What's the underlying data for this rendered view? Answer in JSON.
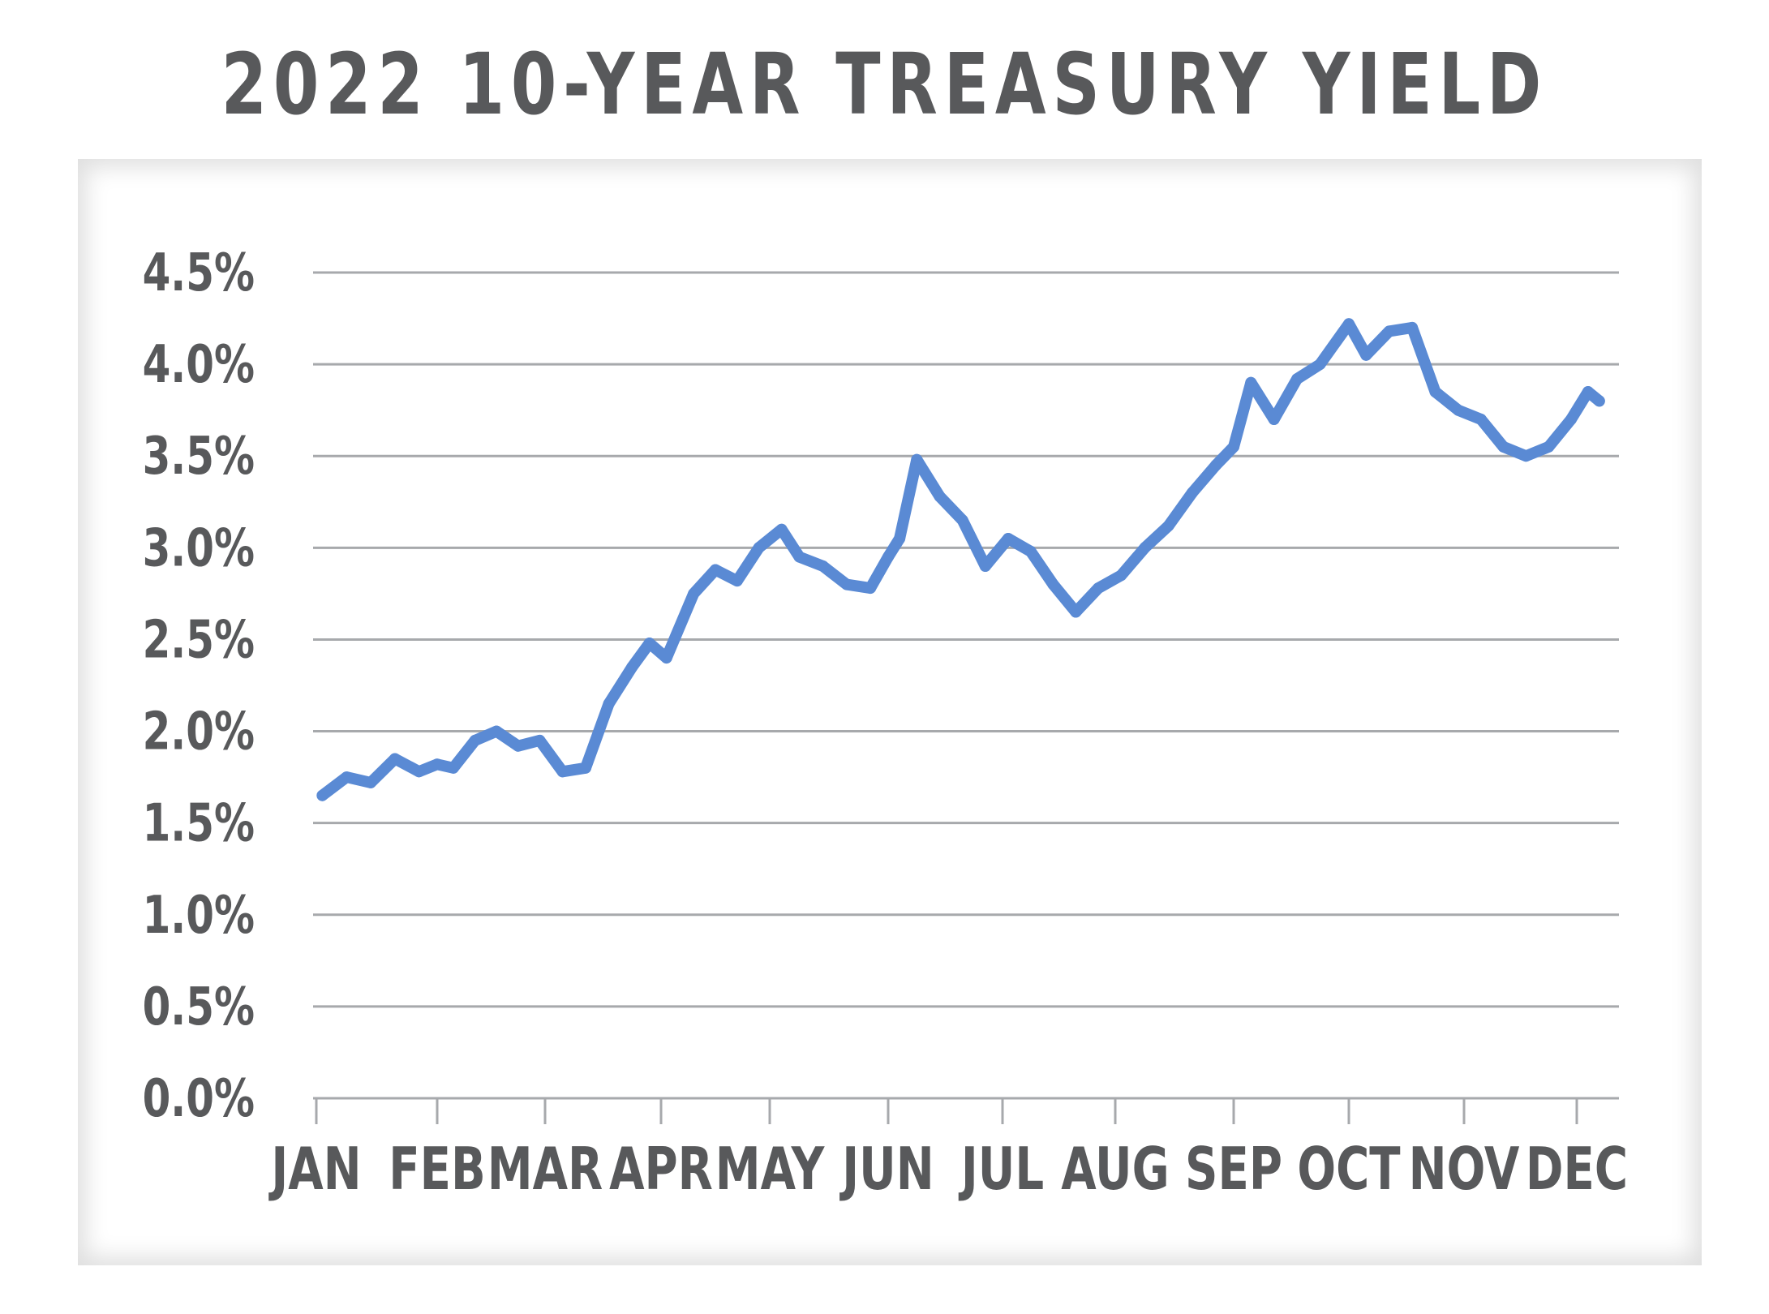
{
  "chart_data": {
    "type": "line",
    "title": "2022 10-YEAR TREASURY YIELD",
    "xlabel": "",
    "ylabel": "",
    "ylim": [
      0,
      4.5
    ],
    "y_ticks": [
      "0.0%",
      "0.5%",
      "1.0%",
      "1.5%",
      "2.0%",
      "2.5%",
      "3.0%",
      "3.5%",
      "4.0%",
      "4.5%"
    ],
    "x_ticks": [
      "JAN",
      "FEB",
      "MAR",
      "APR",
      "MAY",
      "JUN",
      "JUL",
      "AUG",
      "SEP",
      "OCT",
      "NOV",
      "DEC"
    ],
    "grid": true,
    "legend": "none",
    "line_color": "#5a8ad4",
    "series": [
      {
        "x": [
          0.05,
          0.25,
          0.45,
          0.65,
          0.85,
          1.0,
          1.15,
          1.35,
          1.55,
          1.75,
          1.95,
          2.15,
          2.35,
          2.55,
          2.75,
          2.9,
          3.05,
          3.3,
          3.5,
          3.7,
          3.9,
          4.1,
          4.25,
          4.45,
          4.65,
          4.85,
          5.0,
          5.1,
          5.25,
          5.45,
          5.65,
          5.85,
          6.05,
          6.25,
          6.45,
          6.65,
          6.85,
          7.05,
          7.25,
          7.45,
          7.65,
          7.85,
          8.0,
          8.15,
          8.35,
          8.55,
          8.75,
          9.0,
          9.15,
          9.35,
          9.55,
          9.75,
          9.95,
          10.15,
          10.35,
          10.55,
          10.75,
          10.95,
          11.1,
          11.2
        ],
        "y": [
          1.65,
          1.75,
          1.72,
          1.85,
          1.78,
          1.82,
          1.8,
          1.95,
          2.0,
          1.92,
          1.95,
          1.78,
          1.8,
          2.15,
          2.35,
          2.48,
          2.4,
          2.75,
          2.88,
          2.82,
          3.0,
          3.1,
          2.95,
          2.9,
          2.8,
          2.78,
          2.95,
          3.05,
          3.48,
          3.28,
          3.15,
          2.9,
          3.05,
          2.98,
          2.8,
          2.65,
          2.78,
          2.85,
          3.0,
          3.12,
          3.3,
          3.45,
          3.55,
          3.9,
          3.7,
          3.92,
          4.0,
          4.22,
          4.05,
          4.18,
          4.2,
          3.85,
          3.75,
          3.7,
          3.55,
          3.5,
          3.55,
          3.7,
          3.85,
          3.8
        ]
      }
    ]
  }
}
